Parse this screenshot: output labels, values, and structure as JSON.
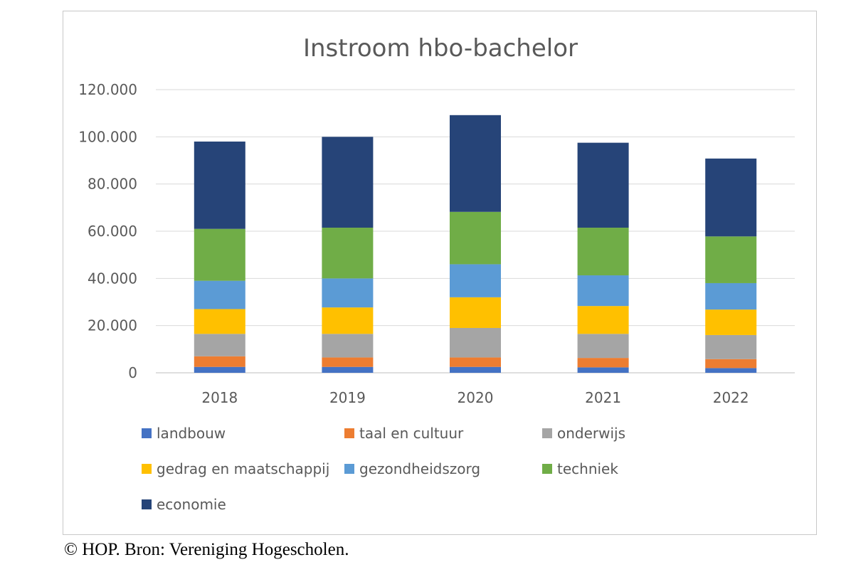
{
  "chart_data": {
    "type": "bar",
    "stacked": true,
    "title": "Instroom hbo-bachelor",
    "xlabel": "",
    "ylabel": "",
    "categories": [
      "2018",
      "2019",
      "2020",
      "2021",
      "2022"
    ],
    "ylim": [
      0,
      120000
    ],
    "y_tick_labels": [
      "0",
      "20.000",
      "40.000",
      "60.000",
      "80.000",
      "100.000",
      "120.000"
    ],
    "grid": true,
    "legend_position": "bottom",
    "series": [
      {
        "name": "landbouw",
        "color": "#4472C4",
        "values": [
          2500,
          2500,
          2500,
          2300,
          2000
        ]
      },
      {
        "name": "taal en cultuur",
        "color": "#ED7D31",
        "values": [
          4500,
          4000,
          4000,
          4000,
          3800
        ]
      },
      {
        "name": "onderwijs",
        "color": "#A5A5A5",
        "values": [
          9500,
          10000,
          12500,
          10200,
          10200
        ]
      },
      {
        "name": "gedrag en maatschappij",
        "color": "#FFC000",
        "values": [
          10500,
          11200,
          13000,
          11800,
          10800
        ]
      },
      {
        "name": "gezondheidszorg",
        "color": "#5B9BD5",
        "values": [
          12000,
          12300,
          14000,
          13000,
          11200
        ]
      },
      {
        "name": "techniek",
        "color": "#70AD47",
        "values": [
          22000,
          21500,
          22200,
          20200,
          19800
        ]
      },
      {
        "name": "economie",
        "color": "#264478",
        "values": [
          37000,
          38500,
          41000,
          36000,
          33000
        ]
      }
    ]
  },
  "caption": "© HOP. Bron: Vereniging Hogescholen."
}
